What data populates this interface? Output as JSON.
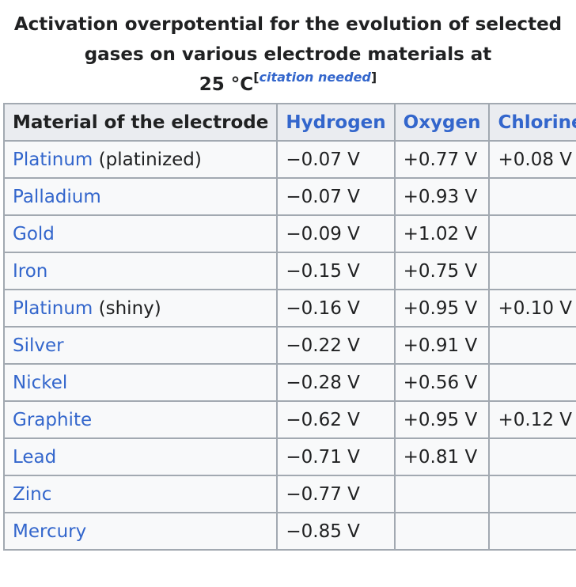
{
  "caption": {
    "line1": "Activation overpotential for the evolution of selected",
    "line2": "gases on various electrode materials at",
    "line3": "25 °C",
    "citation_open": "[",
    "citation_text": "citation needed",
    "citation_close": "]"
  },
  "table": {
    "headers": [
      "Material of the electrode",
      "Hydrogen",
      "Oxygen",
      "Chlorine"
    ],
    "rows": [
      {
        "material": "Platinum",
        "material_suffix": " (platinized)",
        "hydrogen": "−0.07 V",
        "oxygen": "+0.77 V",
        "chlorine": "+0.08 V"
      },
      {
        "material": "Palladium",
        "material_suffix": "",
        "hydrogen": "−0.07 V",
        "oxygen": "+0.93 V",
        "chlorine": ""
      },
      {
        "material": "Gold",
        "material_suffix": "",
        "hydrogen": "−0.09 V",
        "oxygen": "+1.02 V",
        "chlorine": ""
      },
      {
        "material": "Iron",
        "material_suffix": "",
        "hydrogen": "−0.15 V",
        "oxygen": "+0.75 V",
        "chlorine": ""
      },
      {
        "material": "Platinum",
        "material_suffix": " (shiny)",
        "hydrogen": "−0.16 V",
        "oxygen": "+0.95 V",
        "chlorine": "+0.10 V"
      },
      {
        "material": "Silver",
        "material_suffix": "",
        "hydrogen": "−0.22 V",
        "oxygen": "+0.91 V",
        "chlorine": ""
      },
      {
        "material": "Nickel",
        "material_suffix": "",
        "hydrogen": "−0.28 V",
        "oxygen": "+0.56 V",
        "chlorine": ""
      },
      {
        "material": "Graphite",
        "material_suffix": "",
        "hydrogen": "−0.62 V",
        "oxygen": "+0.95 V",
        "chlorine": "+0.12 V"
      },
      {
        "material": "Lead",
        "material_suffix": "",
        "hydrogen": "−0.71 V",
        "oxygen": "+0.81 V",
        "chlorine": ""
      },
      {
        "material": "Zinc",
        "material_suffix": "",
        "hydrogen": "−0.77 V",
        "oxygen": "",
        "chlorine": ""
      },
      {
        "material": "Mercury",
        "material_suffix": "",
        "hydrogen": "−0.85 V",
        "oxygen": "",
        "chlorine": ""
      }
    ]
  },
  "colors": {
    "link": "#3366cc",
    "text": "#202122",
    "header_bg": "#eaecf0",
    "cell_bg": "#f8f9fa",
    "border": "#a2a9b1"
  }
}
